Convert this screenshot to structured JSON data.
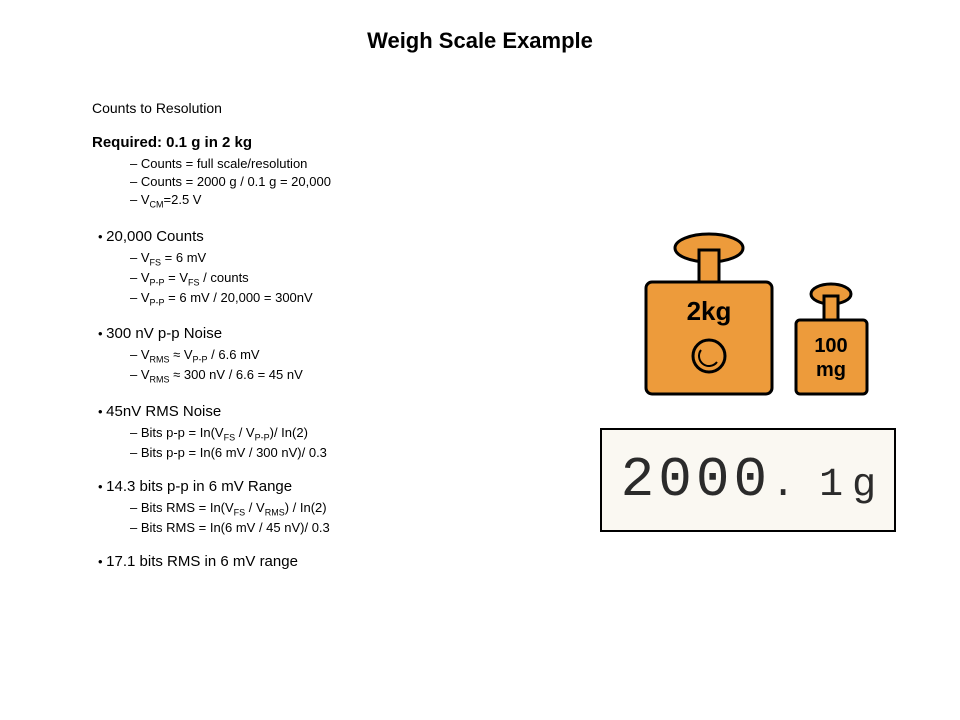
{
  "title": "Weigh Scale Example",
  "subtitle": "Counts to Resolution",
  "required_heading": "Required: 0.1 g in 2 kg",
  "required_items": [
    "Counts = full scale/resolution",
    "Counts = 2000 g / 0.1 g = 20,000",
    {
      "pre": "V",
      "sub": "CM",
      "post": "=2.5 V"
    }
  ],
  "sections": [
    {
      "heading": "20,000 Counts",
      "items": [
        {
          "pre": "V",
          "sub": "FS",
          "post": " = 6 mV"
        },
        {
          "pre": "V",
          "sub": "P-P",
          "post": " = V",
          "sub2": "FS",
          "post2": " / counts"
        },
        {
          "pre": "V",
          "sub": "P-P",
          "post": " = 6 mV / 20,000 = 300nV"
        }
      ]
    },
    {
      "heading": "300 nV p-p Noise",
      "items": [
        {
          "pre": "V",
          "sub": "RMS",
          "post": " ≈ V",
          "sub2": "P-P",
          "post2": " / 6.6 mV"
        },
        {
          "pre": "V",
          "sub": "RMS",
          "post": " ≈ 300 nV / 6.6 = 45 nV"
        }
      ]
    },
    {
      "heading": "45nV RMS Noise",
      "items": [
        {
          "pre": "Bits p-p = In(V",
          "sub": "FS",
          "post": " / V",
          "sub2": "P-P",
          "post2": ")/ In(2)"
        },
        "Bits p-p = In(6 mV / 300 nV)/ 0.3"
      ]
    },
    {
      "heading": "14.3 bits p-p in 6 mV Range",
      "items": [
        {
          "pre": "Bits RMS = In(V",
          "sub": "FS",
          "post": " / V",
          "sub2": "RMS",
          "post2": ") / In(2)"
        },
        "Bits RMS = In(6 mV / 45 nV)/ 0.3"
      ]
    },
    {
      "heading": "17.1 bits RMS in 6 mV range",
      "items": []
    }
  ],
  "illustration": {
    "big_label": "2kg",
    "small_label_line1": "100",
    "small_label_line2": "mg",
    "readout_digits": "2000",
    "readout_decimal": ". 1",
    "readout_unit": "g",
    "colors": {
      "weight_fill": "#ed9b3b",
      "display_bg": "#faf8f2",
      "stroke": "#000000"
    }
  }
}
